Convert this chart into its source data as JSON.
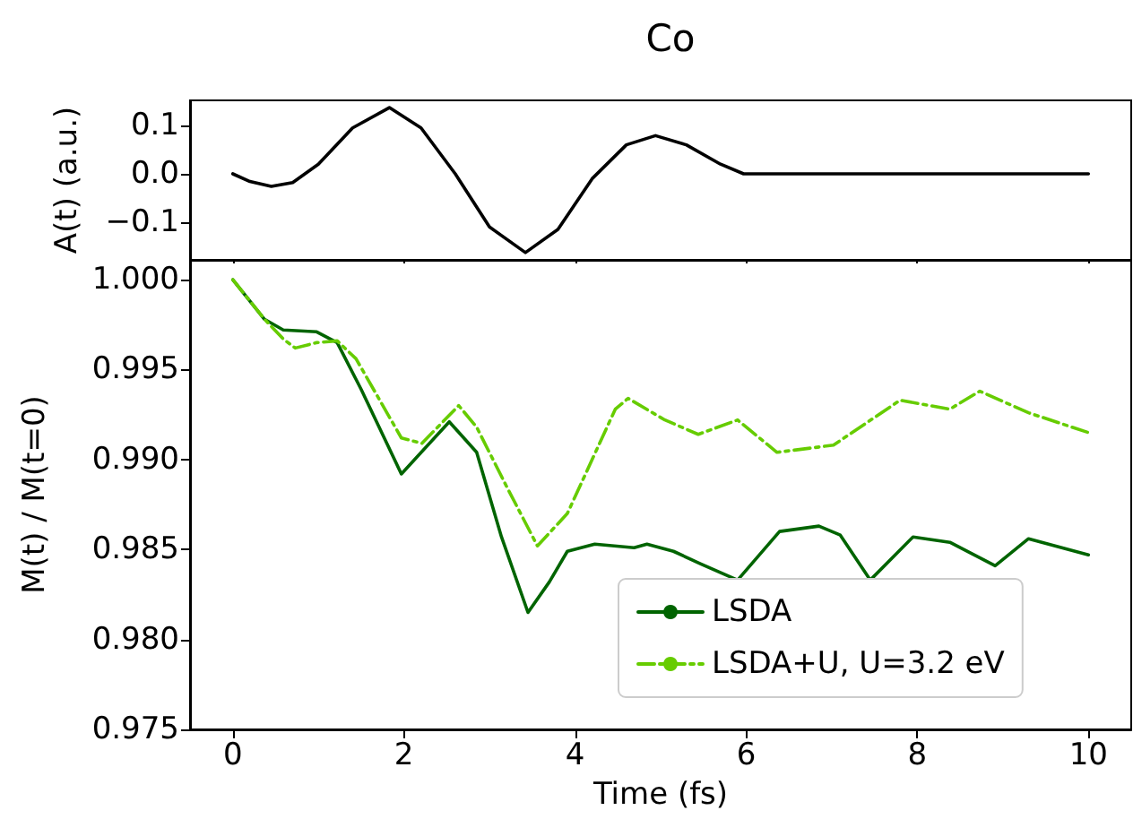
{
  "chart_data": [
    {
      "type": "line",
      "title": "Co",
      "ylabel": "A(t) (a.u.)",
      "tick_labels": "y",
      "grid": false,
      "legend": false,
      "marker": "none",
      "xlim": [
        -0.5,
        10.5
      ],
      "xticks": [
        0,
        2,
        4,
        6,
        8,
        10
      ],
      "ylim": [
        -0.178,
        0.152
      ],
      "yticks": [
        {
          "value": -0.1,
          "label": "−0.1"
        },
        {
          "value": 0,
          "label": "0.0"
        },
        {
          "value": 0.1,
          "label": "0.1"
        }
      ],
      "series": [
        {
          "color": "#000000",
          "line_style": "solid",
          "x": [
            0,
            0.2,
            0.45,
            0.7,
            1.0,
            1.4,
            1.83,
            2.2,
            2.6,
            3.0,
            3.42,
            3.8,
            4.2,
            4.6,
            4.94,
            5.3,
            5.7,
            5.97,
            7,
            8,
            9,
            10
          ],
          "values": [
            0,
            -0.016,
            -0.026,
            -0.018,
            0.02,
            0.095,
            0.137,
            0.095,
            0,
            -0.11,
            -0.163,
            -0.115,
            -0.01,
            0.06,
            0.079,
            0.06,
            0.02,
            0,
            0,
            0,
            0,
            0
          ]
        }
      ]
    },
    {
      "type": "line",
      "xlabel": "Time (fs)",
      "ylabel": "M(t) / M(t=0)",
      "grid": false,
      "legend": "bottom right",
      "marker": "none",
      "xlim": [
        -0.5,
        10.5
      ],
      "xticks": [
        0,
        2,
        4,
        6,
        8,
        10
      ],
      "ylim": [
        0.975,
        1.0011
      ],
      "yticks": [
        {
          "value": 0.975,
          "label": "0.975"
        },
        {
          "value": 0.98,
          "label": "0.980"
        },
        {
          "value": 0.985,
          "label": "0.985"
        },
        {
          "value": 0.99,
          "label": "0.990"
        },
        {
          "value": 0.995,
          "label": "0.995"
        },
        {
          "value": 1.0,
          "label": "1.000"
        }
      ],
      "series": [
        {
          "name": "LSDA",
          "color": "#006400",
          "line_style": "solid",
          "x": [
            0,
            0.37,
            0.59,
            0.98,
            1.22,
            1.5,
            1.97,
            2.53,
            2.85,
            3.14,
            3.45,
            3.7,
            3.91,
            4.23,
            4.69,
            4.84,
            5.15,
            5.47,
            5.9,
            6.39,
            6.85,
            7.1,
            7.45,
            7.95,
            8.38,
            8.91,
            9.3,
            10
          ],
          "values": [
            1.0,
            0.9978,
            0.9972,
            0.9971,
            0.9965,
            0.9939,
            0.9892,
            0.9921,
            0.9904,
            0.9857,
            0.9815,
            0.9832,
            0.9849,
            0.9853,
            0.9851,
            0.9853,
            0.9849,
            0.9842,
            0.9833,
            0.986,
            0.9863,
            0.9858,
            0.9833,
            0.9857,
            0.9854,
            0.9841,
            0.9856,
            0.9847
          ]
        },
        {
          "name": "LSDA+U, U=3.2 eV",
          "color": "#66cc00",
          "line_style": "dashed",
          "x": [
            0,
            0.37,
            0.59,
            0.73,
            0.98,
            1.22,
            1.44,
            1.97,
            2.21,
            2.64,
            2.85,
            3.2,
            3.56,
            3.91,
            4.47,
            4.62,
            5.05,
            5.44,
            5.9,
            6.36,
            7.02,
            7.8,
            8.38,
            8.73,
            9.3,
            10
          ],
          "values": [
            1.0,
            0.9978,
            0.9967,
            0.9962,
            0.9965,
            0.9966,
            0.9956,
            0.9912,
            0.9909,
            0.993,
            0.9918,
            0.9885,
            0.9852,
            0.987,
            0.9928,
            0.9934,
            0.9922,
            0.9914,
            0.9922,
            0.9904,
            0.9908,
            0.9933,
            0.9928,
            0.9938,
            0.9926,
            0.9915
          ]
        }
      ]
    }
  ]
}
